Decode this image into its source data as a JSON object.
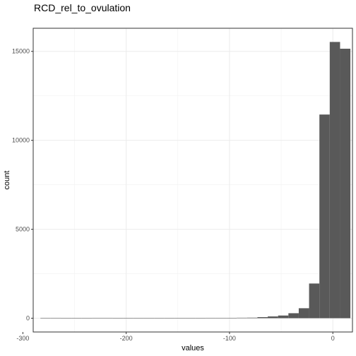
{
  "chart_data": {
    "type": "bar",
    "subtype": "histogram",
    "title": "RCD_rel_to_ovulation",
    "xlabel": "values",
    "ylabel": "count",
    "xlim": [
      -290,
      19
    ],
    "ylim": [
      -775,
      16300
    ],
    "x_ticks": [
      -300,
      -200,
      -100,
      0
    ],
    "x_tick_labels": [
      "-300",
      "-200",
      "-100",
      "0"
    ],
    "y_ticks": [
      0,
      5000,
      10000,
      15000
    ],
    "y_tick_labels": [
      "0",
      "5000",
      "10000",
      "15000"
    ],
    "grid": true,
    "bar_color": "#595959",
    "bins": [
      {
        "x0": -283.0,
        "x1": -273.0,
        "count": 20
      },
      {
        "x0": -273.0,
        "x1": -263.0,
        "count": 20
      },
      {
        "x0": -263.0,
        "x1": -253.0,
        "count": 10
      },
      {
        "x0": -253.0,
        "x1": -243.0,
        "count": 10
      },
      {
        "x0": -243.0,
        "x1": -233.0,
        "count": 15
      },
      {
        "x0": -233.0,
        "x1": -223.0,
        "count": 20
      },
      {
        "x0": -223.0,
        "x1": -213.0,
        "count": 20
      },
      {
        "x0": -213.0,
        "x1": -203.0,
        "count": 10
      },
      {
        "x0": -203.0,
        "x1": -193.0,
        "count": 10
      },
      {
        "x0": -193.0,
        "x1": -183.0,
        "count": 10
      },
      {
        "x0": -183.0,
        "x1": -173.0,
        "count": 15
      },
      {
        "x0": -173.0,
        "x1": -163.0,
        "count": 15
      },
      {
        "x0": -163.0,
        "x1": -153.0,
        "count": 15
      },
      {
        "x0": -153.0,
        "x1": -143.0,
        "count": 15
      },
      {
        "x0": -143.0,
        "x1": -133.0,
        "count": 15
      },
      {
        "x0": -133.0,
        "x1": -123.0,
        "count": 15
      },
      {
        "x0": -123.0,
        "x1": -113.0,
        "count": 20
      },
      {
        "x0": -113.0,
        "x1": -103.0,
        "count": 20
      },
      {
        "x0": -103.0,
        "x1": -93.0,
        "count": 20
      },
      {
        "x0": -93.0,
        "x1": -83.0,
        "count": 25
      },
      {
        "x0": -83.0,
        "x1": -73.0,
        "count": 30
      },
      {
        "x0": -73.0,
        "x1": -63.0,
        "count": 60
      },
      {
        "x0": -63.0,
        "x1": -53.0,
        "count": 100
      },
      {
        "x0": -53.0,
        "x1": -43.0,
        "count": 150
      },
      {
        "x0": -43.0,
        "x1": -33.0,
        "count": 280
      },
      {
        "x0": -33.0,
        "x1": -23.0,
        "count": 560
      },
      {
        "x0": -23.0,
        "x1": -13.0,
        "count": 1950
      },
      {
        "x0": -13.0,
        "x1": -3.0,
        "count": 11450
      },
      {
        "x0": -3.0,
        "x1": 7.0,
        "count": 15530
      },
      {
        "x0": 7.0,
        "x1": 17.0,
        "count": 15150
      }
    ]
  }
}
